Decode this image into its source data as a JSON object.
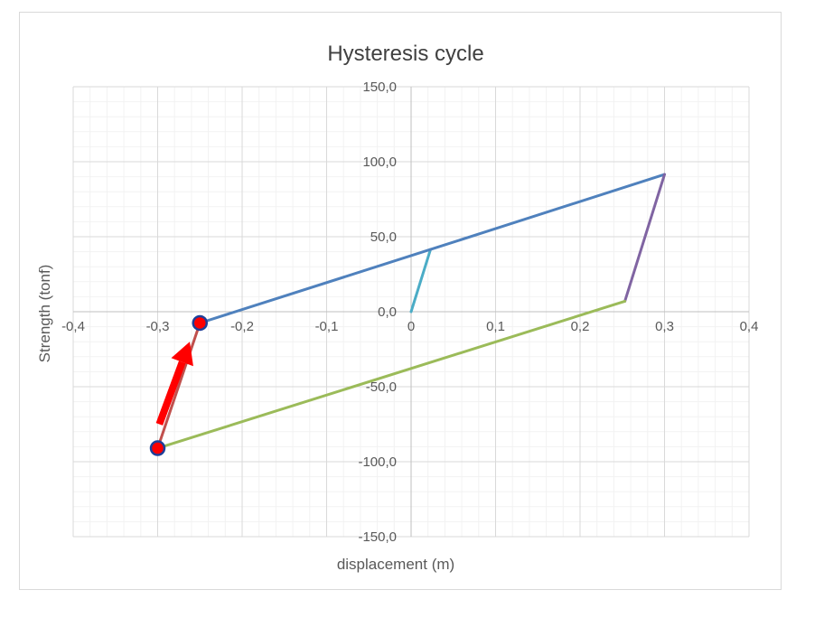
{
  "chart_data": {
    "type": "line",
    "title": "Hysteresis cycle",
    "xlabel": "displacement (m)",
    "ylabel": "Strength (tonf)",
    "xlim": [
      -0.4,
      0.4
    ],
    "ylim": [
      -150,
      150
    ],
    "x_ticks": [
      -0.4,
      -0.3,
      -0.2,
      -0.1,
      0,
      0.1,
      0.2,
      0.3,
      0.4
    ],
    "x_tick_labels": [
      "-0,4",
      "-0,3",
      "-0,2",
      "-0,1",
      "0",
      "0,1",
      "0,2",
      "0,3",
      "0,4"
    ],
    "y_ticks": [
      150,
      100,
      50,
      0,
      -50,
      -100,
      -150
    ],
    "y_tick_labels": [
      "150,0",
      "100,0",
      "50,0",
      "0,0",
      "-50,0",
      "-100,0",
      "-150,0"
    ],
    "grid": {
      "major": true,
      "minor": true
    },
    "series": [
      {
        "color": "#4bacc6",
        "points": [
          [
            0,
            0
          ],
          [
            0.023,
            41.5
          ]
        ]
      },
      {
        "color": "#4f81bd",
        "points": [
          [
            -0.25,
            -7.5
          ],
          [
            0.023,
            41.5
          ],
          [
            0.3,
            91.5
          ]
        ]
      },
      {
        "color": "#8064a2",
        "points": [
          [
            0.3,
            91.5
          ],
          [
            0.253,
            7
          ]
        ]
      },
      {
        "color": "#9bbb59",
        "points": [
          [
            0.253,
            7
          ],
          [
            -0.3,
            -91
          ]
        ]
      },
      {
        "color": "#c0504d",
        "points": [
          [
            -0.3,
            -91
          ],
          [
            -0.25,
            -7.5
          ]
        ]
      }
    ],
    "markers": [
      {
        "x": -0.25,
        "y": -7.5,
        "fill": "#ff0000",
        "stroke": "#1f3f99"
      },
      {
        "x": -0.3,
        "y": -91,
        "fill": "#ff0000",
        "stroke": "#1f3f99"
      }
    ],
    "annotation_arrow": {
      "from": [
        -0.298,
        -75
      ],
      "to": [
        -0.262,
        -20
      ],
      "color": "#ff0000"
    }
  }
}
